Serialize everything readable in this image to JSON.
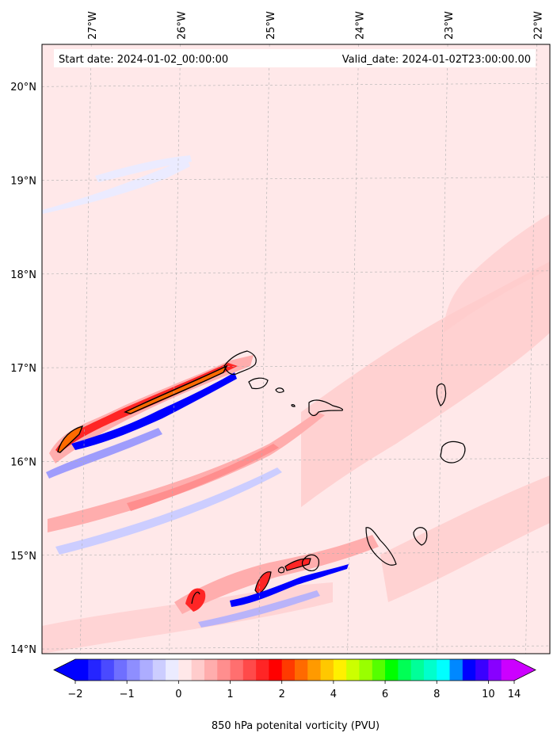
{
  "header": {
    "start_date": "Start date: 2024-01-02_00:00:00",
    "valid_date": "Valid_date: 2024-01-02T23:00:00.00"
  },
  "map": {
    "lon_labels": [
      "27°W",
      "26°W",
      "25°W",
      "24°W",
      "23°W",
      "22°W"
    ],
    "lon_values": [
      -27,
      -26,
      -25,
      -24,
      -23,
      -22
    ],
    "lat_labels": [
      "20°N",
      "19°N",
      "18°N",
      "17°N",
      "16°N",
      "15°N",
      "14°N"
    ],
    "lat_values": [
      20,
      19,
      18,
      17,
      16,
      15,
      14
    ],
    "extent": {
      "lon_min": -27.5,
      "lon_max": -21.8,
      "lat_min": 13.95,
      "lat_max": 20.45
    },
    "background_color": "#ffe8e9"
  },
  "colorbar": {
    "label": "850 hPa potenital vorticity (PVU)",
    "tick_labels": [
      "−2",
      "−1",
      "0",
      "1",
      "2",
      "4",
      "6",
      "8",
      "10",
      "14"
    ],
    "colors": [
      "#0000ff",
      "#2525ff",
      "#4a4aff",
      "#6f6fff",
      "#8e8eff",
      "#adadff",
      "#cccdff",
      "#ebebff",
      "#ffe8e9",
      "#ffcccc",
      "#ffadad",
      "#ff8e8e",
      "#ff6f6f",
      "#ff4a4a",
      "#ff2525",
      "#ff0000",
      "#ff3a00",
      "#ff6a00",
      "#ff9a00",
      "#ffc800",
      "#fff000",
      "#ccff00",
      "#99ff00",
      "#55ff00",
      "#00ff00",
      "#00ff55",
      "#00ff99",
      "#00ffcc",
      "#00ffff",
      "#0088ff",
      "#0000ff",
      "#3a00ff",
      "#8800ff",
      "#cc00ff"
    ]
  }
}
